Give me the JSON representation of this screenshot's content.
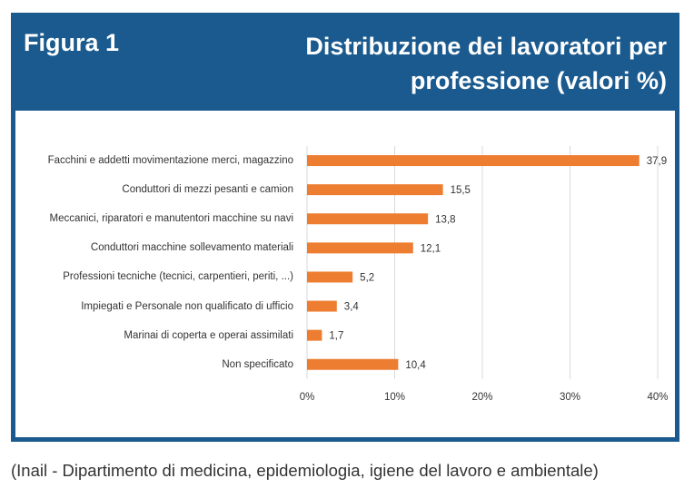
{
  "header": {
    "figure": "Figura 1"
  },
  "source": "(Inail - Dipartimento di medicina, epidemiologia, igiene del lavoro e ambientale)",
  "chart_data": {
    "type": "hbar",
    "title": "Distribuzione dei lavoratori per professione (valori %)",
    "categories": [
      "Facchini e addetti movimentazione merci, magazzino",
      "Conduttori di mezzi pesanti e camion",
      "Meccanici, riparatori e manutentori macchine su navi",
      "Conduttori macchine sollevamento materiali",
      "Professioni tecniche (tecnici, carpentieri, periti, ...)",
      "Impiegati e Personale non qualificato di ufficio",
      "Marinai di coperta e operai assimilati",
      "Non specificato"
    ],
    "values": [
      37.9,
      15.5,
      13.8,
      12.1,
      5.2,
      3.4,
      1.7,
      10.4
    ],
    "value_labels": [
      "37,9",
      "15,5",
      "13,8",
      "12,1",
      "5,2",
      "3,4",
      "1,7",
      "10,4"
    ],
    "color": "#ed7d31",
    "xlim": [
      0,
      40
    ],
    "xticks": [
      {
        "value": 0,
        "label": "0%"
      },
      {
        "value": 10,
        "label": "10%"
      },
      {
        "value": 20,
        "label": "20%"
      },
      {
        "value": 30,
        "label": "30%"
      },
      {
        "value": 40,
        "label": "40%"
      }
    ],
    "grid": true
  }
}
